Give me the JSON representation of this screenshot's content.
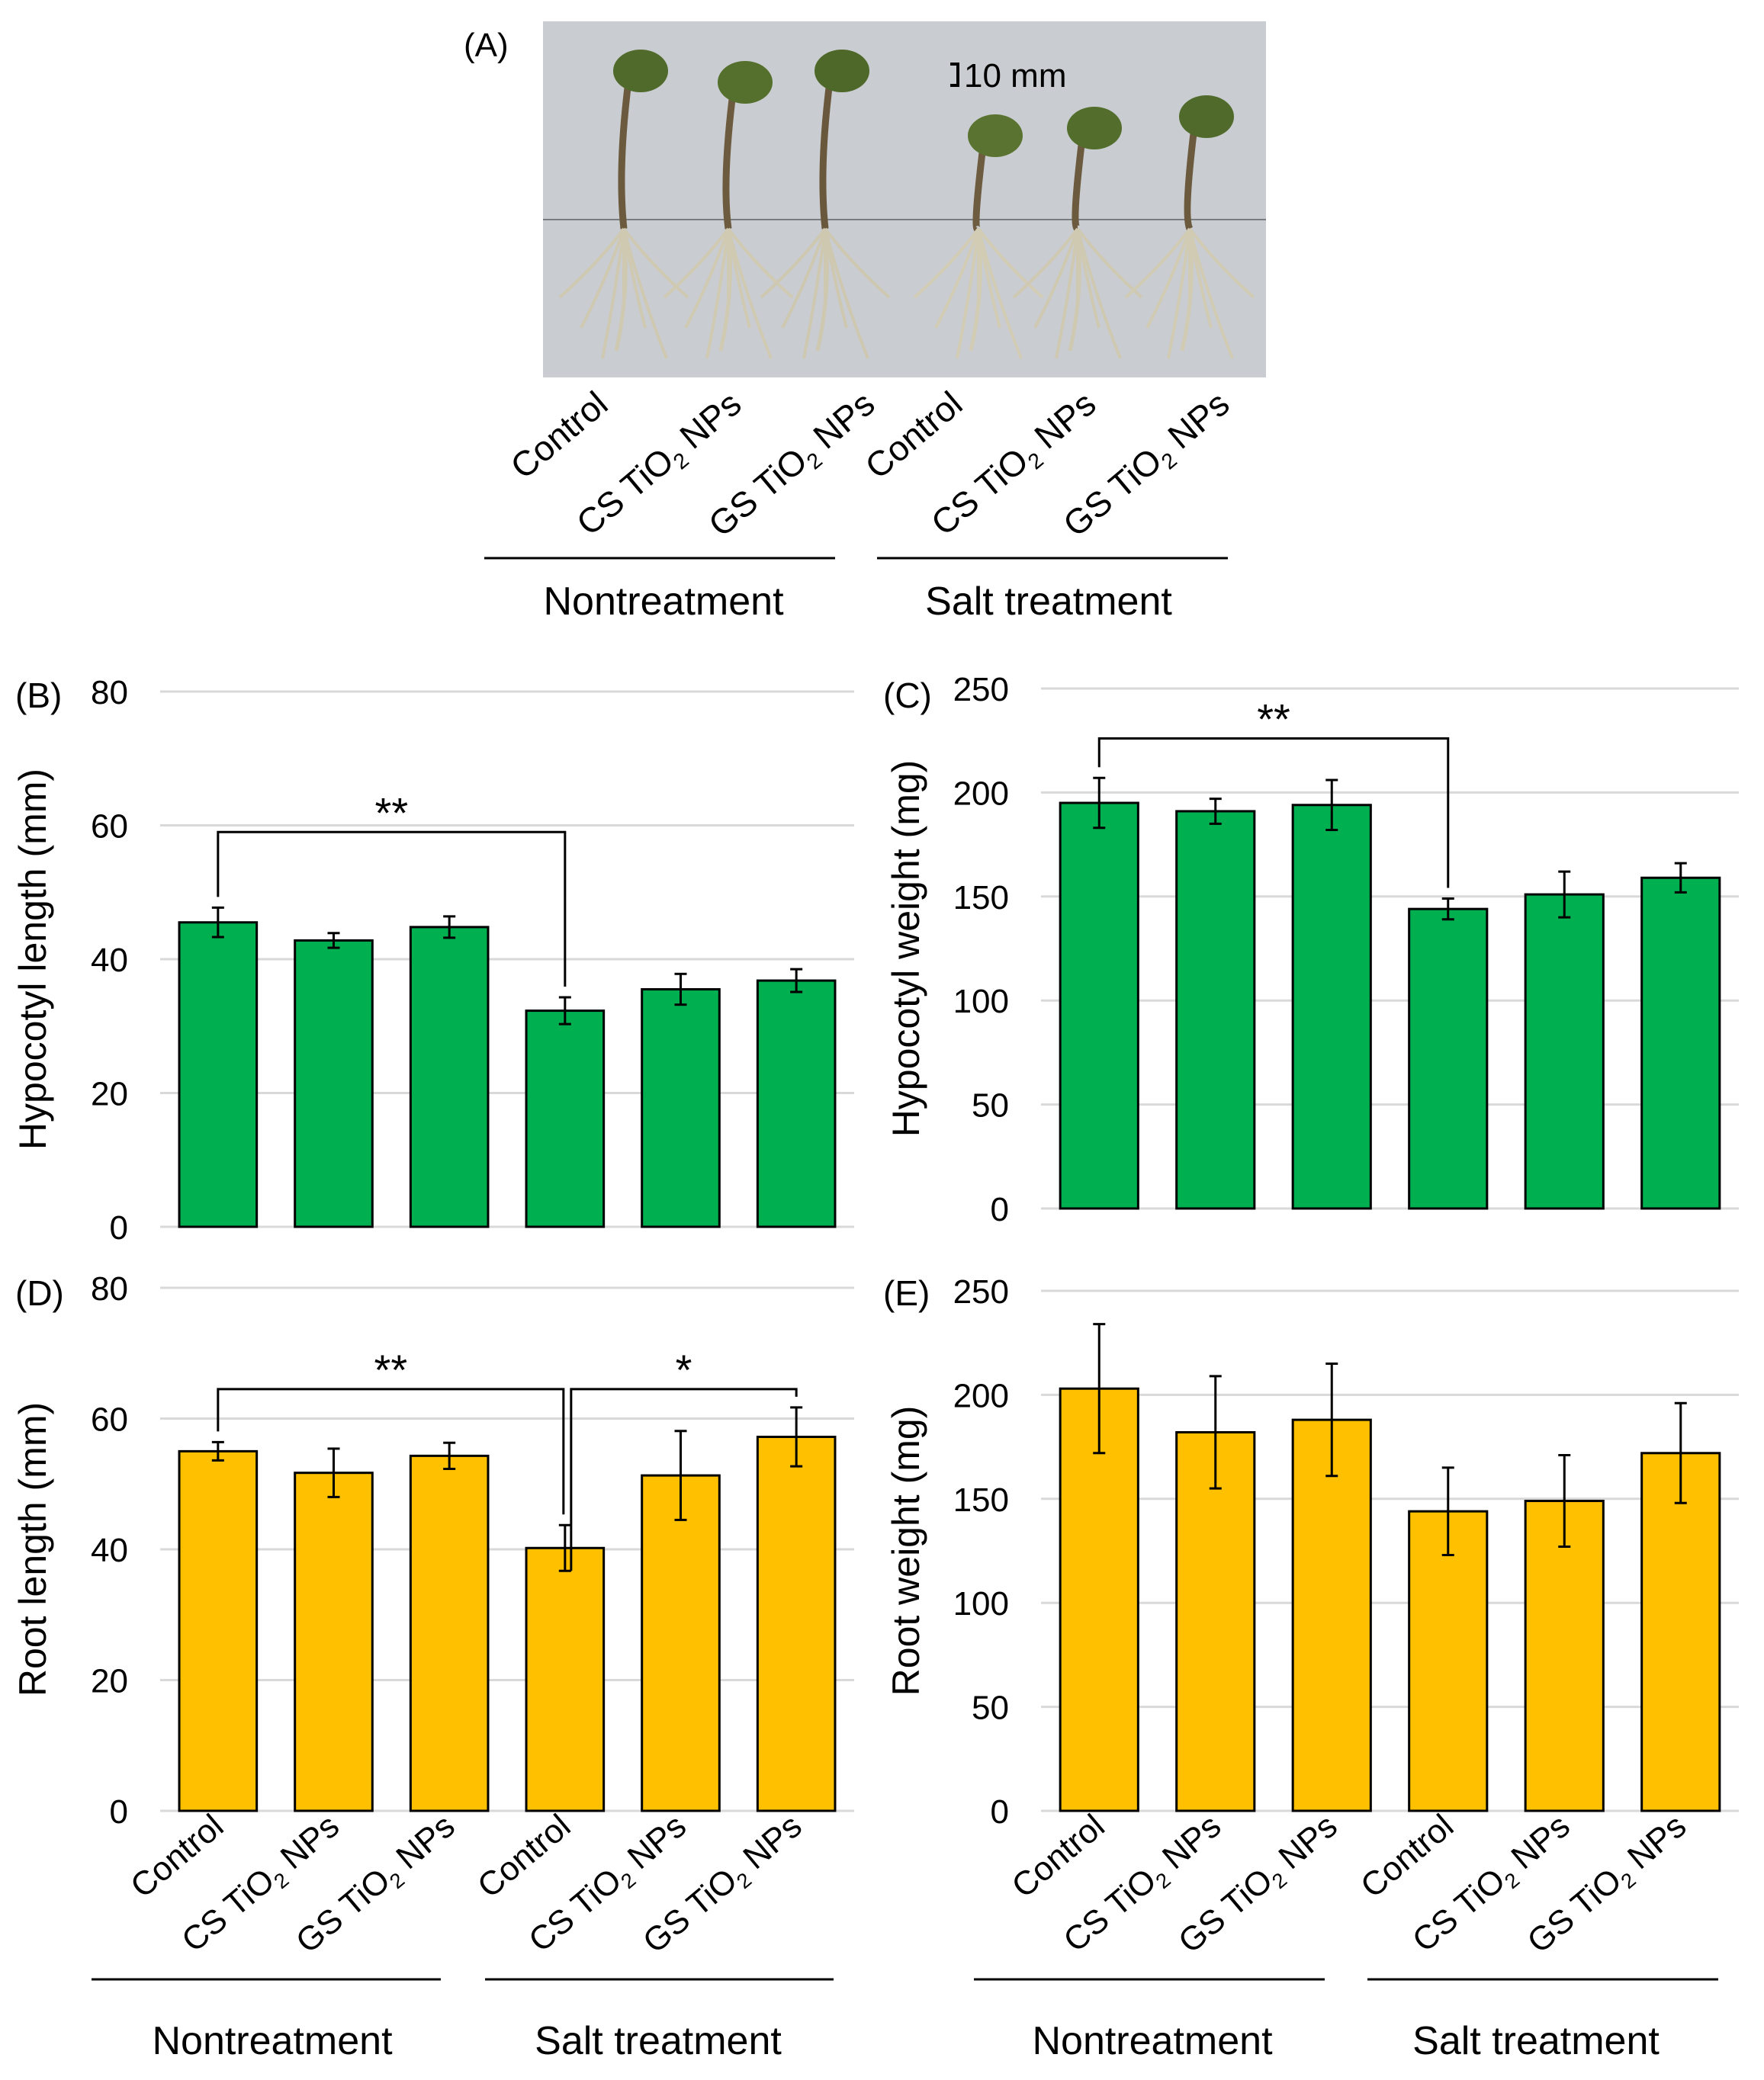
{
  "figure": {
    "panel_a": {
      "label": "(A)",
      "scale_bar": "10 mm",
      "seedlings": [
        {
          "cotyledon": "#4f6a2a",
          "stem": "#6b5a3e",
          "root": "#cfc9b2"
        },
        {
          "cotyledon": "#55702c",
          "stem": "#6d5b40",
          "root": "#d0cab3"
        },
        {
          "cotyledon": "#4d6828",
          "stem": "#6a583d",
          "root": "#cec8b1"
        },
        {
          "cotyledon": "#5a7330",
          "stem": "#6e5c41",
          "root": "#d2ccb5"
        },
        {
          "cotyledon": "#536d2c",
          "stem": "#6c5a3f",
          "root": "#cfc9b2"
        },
        {
          "cotyledon": "#4f6a2a",
          "stem": "#6b5a3e",
          "root": "#d1cbb4"
        }
      ],
      "background_color": "#c9ccd0"
    },
    "categories": [
      {
        "base": "Control",
        "sub": ""
      },
      {
        "base": "CS TiO",
        "sub": "2",
        "tail": " NPs"
      },
      {
        "base": "GS TiO",
        "sub": "2",
        "tail": " NPs"
      },
      {
        "base": "Control",
        "sub": ""
      },
      {
        "base": "CS TiO",
        "sub": "2",
        "tail": " NPs"
      },
      {
        "base": "GS TiO",
        "sub": "2",
        "tail": " NPs"
      }
    ],
    "groups": [
      "Nontreatment",
      "Salt treatment"
    ],
    "colors": {
      "green": "#00b050",
      "yellow": "#ffc000",
      "grid": "#d9d9d9",
      "axis_text": "#404040"
    }
  },
  "chart_data": [
    {
      "id": "B",
      "label": "(B)",
      "type": "bar",
      "ylabel": "Hypocotyl length (mm)",
      "ylim": [
        0,
        80
      ],
      "yticks": [
        0,
        20,
        40,
        60,
        80
      ],
      "values": [
        45.5,
        42.8,
        44.8,
        32.3,
        35.5,
        36.8
      ],
      "errors": [
        2.2,
        1.1,
        1.6,
        2.0,
        2.3,
        1.7
      ],
      "color": "#00b050",
      "brackets": [
        {
          "from": 0,
          "to": 3,
          "label": "**",
          "level": 59
        }
      ]
    },
    {
      "id": "C",
      "label": "(C)",
      "type": "bar",
      "ylabel": "Hypocotyl weight (mg)",
      "ylim": [
        0,
        250
      ],
      "yticks": [
        0,
        50,
        100,
        150,
        200,
        250
      ],
      "values": [
        195,
        191,
        194,
        144,
        151,
        159
      ],
      "errors": [
        12,
        6,
        12,
        5,
        11,
        7
      ],
      "color": "#00b050",
      "brackets": [
        {
          "from": 0,
          "to": 3,
          "label": "**",
          "level": 226
        }
      ]
    },
    {
      "id": "D",
      "label": "(D)",
      "type": "bar",
      "ylabel": "Root length (mm)",
      "ylim": [
        0,
        80
      ],
      "yticks": [
        0,
        20,
        40,
        60,
        80
      ],
      "values": [
        55.0,
        51.7,
        54.3,
        40.2,
        51.3,
        57.2
      ],
      "errors": [
        1.4,
        3.7,
        2.0,
        3.5,
        6.8,
        4.5
      ],
      "color": "#ffc000",
      "brackets": [
        {
          "from": 0,
          "to": 3,
          "label": "**",
          "level": 64.5
        },
        {
          "from": 3,
          "to": 5,
          "label": "*",
          "level": 64.5
        }
      ]
    },
    {
      "id": "E",
      "label": "(E)",
      "type": "bar",
      "ylabel": "Root weight (mg)",
      "ylim": [
        0,
        250
      ],
      "yticks": [
        0,
        50,
        100,
        150,
        200,
        250
      ],
      "values": [
        203,
        182,
        188,
        144,
        149,
        172
      ],
      "errors": [
        31,
        27,
        27,
        21,
        22,
        24
      ],
      "color": "#ffc000",
      "brackets": []
    }
  ]
}
